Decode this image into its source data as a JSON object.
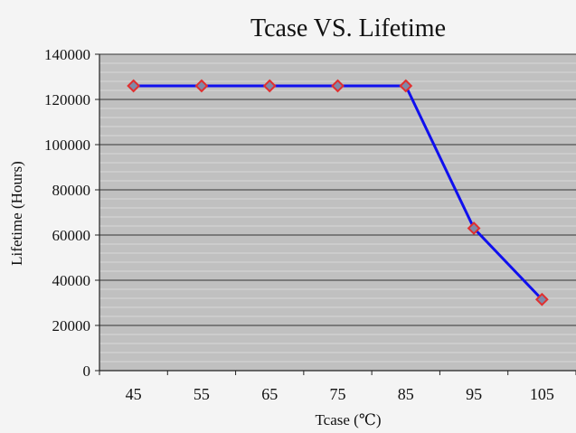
{
  "chart_data": {
    "type": "line",
    "title": "Tcase VS. Lifetime",
    "xlabel": "Tcase (℃)",
    "ylabel": "Lifetime (Hours)",
    "categories": [
      "45",
      "55",
      "65",
      "75",
      "85",
      "95",
      "105"
    ],
    "series": [
      {
        "values": [
          126000,
          126000,
          126000,
          126000,
          126000,
          63000,
          31500
        ]
      }
    ],
    "ylim": [
      0,
      140000
    ],
    "yticks": [
      "0",
      "20000",
      "40000",
      "60000",
      "80000",
      "100000",
      "120000",
      "140000"
    ],
    "grid": true,
    "legend": "none",
    "colors": {
      "line": "#1010ee",
      "marker_fill": "#7f8aa8",
      "marker_stroke": "#e03030",
      "plot_bg": "#c0c0c0",
      "major_grid": "#333333",
      "minor_grid": "#d8d8d8"
    }
  }
}
